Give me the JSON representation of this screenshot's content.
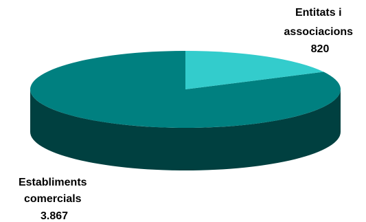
{
  "chart_data": {
    "type": "pie",
    "style": "3d",
    "categories": [
      "Entitats i associacions",
      "Establiments comercials"
    ],
    "values": [
      820,
      3867
    ],
    "colors": {
      "Entitats i associacions": "#33cccc",
      "Establiments comercials": "#008080",
      "side": "#004040"
    },
    "labels": [
      {
        "lines": [
          "Entitats i",
          "associacions",
          "820"
        ]
      },
      {
        "lines": [
          "Establiments",
          "comercials",
          "3.867"
        ]
      }
    ]
  }
}
